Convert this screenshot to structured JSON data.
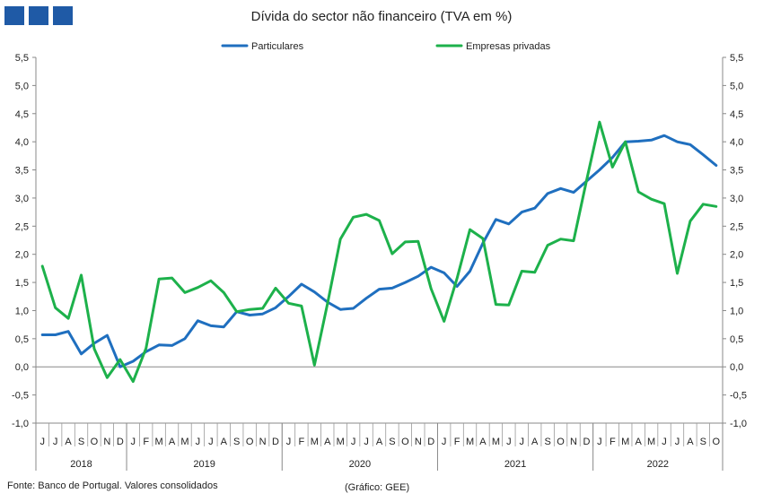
{
  "logo_color": "#1f5aa6",
  "title": "Dívida do sector não financeiro (TVA em %)",
  "source_left": "Fonte: Banco de Portugal. Valores consolidados",
  "source_right": "(Gráfico: GEE)",
  "chart_data": {
    "type": "line",
    "title": "Dívida do sector não financeiro (TVA em %)",
    "ylim": [
      -1.0,
      5.5
    ],
    "y_ticks": [
      "5,5",
      "5,0",
      "4,5",
      "4,0",
      "3,5",
      "3,0",
      "2,5",
      "2,0",
      "1,5",
      "1,0",
      "0,5",
      "0,0",
      "-0,5",
      "-1,0"
    ],
    "grid": false,
    "legend_position": "top-center",
    "month_labels": [
      "J",
      "J",
      "A",
      "S",
      "O",
      "N",
      "D",
      "J",
      "F",
      "M",
      "A",
      "M",
      "J",
      "J",
      "A",
      "S",
      "O",
      "N",
      "D",
      "J",
      "F",
      "M",
      "A",
      "M",
      "J",
      "J",
      "A",
      "S",
      "O",
      "N",
      "D",
      "J",
      "F",
      "M",
      "A",
      "M",
      "J",
      "J",
      "A",
      "S",
      "O",
      "N",
      "D",
      "J",
      "F",
      "M",
      "A",
      "M",
      "J",
      "J",
      "A",
      "S",
      "O"
    ],
    "years": [
      {
        "label": "2018",
        "start": 0,
        "count": 7
      },
      {
        "label": "2019",
        "start": 7,
        "count": 12
      },
      {
        "label": "2020",
        "start": 19,
        "count": 12
      },
      {
        "label": "2021",
        "start": 31,
        "count": 12
      },
      {
        "label": "2022",
        "start": 43,
        "count": 10
      }
    ],
    "series": [
      {
        "name": "Particulares",
        "color": "#1f6fbf",
        "values": [
          0.57,
          0.57,
          0.63,
          0.23,
          0.42,
          0.56,
          0.0,
          0.1,
          0.27,
          0.39,
          0.38,
          0.5,
          0.82,
          0.73,
          0.71,
          0.98,
          0.92,
          0.94,
          1.05,
          1.25,
          1.47,
          1.33,
          1.15,
          1.02,
          1.04,
          1.22,
          1.38,
          1.4,
          1.5,
          1.61,
          1.77,
          1.67,
          1.43,
          1.7,
          2.2,
          2.62,
          2.54,
          2.75,
          2.82,
          3.08,
          3.17,
          3.1,
          3.3,
          3.5,
          3.72,
          4.0,
          4.01,
          4.03,
          4.11,
          4.0,
          3.95,
          3.77,
          3.58
        ]
      },
      {
        "name": "Empresas privadas",
        "color": "#1db14b",
        "values": [
          1.79,
          1.05,
          0.86,
          1.63,
          0.32,
          -0.19,
          0.13,
          -0.26,
          0.33,
          1.56,
          1.58,
          1.32,
          1.41,
          1.53,
          1.32,
          0.98,
          1.02,
          1.04,
          1.4,
          1.13,
          1.08,
          0.03,
          1.12,
          2.27,
          2.66,
          2.71,
          2.6,
          2.01,
          2.22,
          2.23,
          1.39,
          0.81,
          1.57,
          2.44,
          2.28,
          1.11,
          1.1,
          1.7,
          1.68,
          2.16,
          2.27,
          2.24,
          3.31,
          4.35,
          3.55,
          4.0,
          3.11,
          2.98,
          2.9,
          1.66,
          2.59,
          2.89,
          2.85
        ]
      }
    ]
  }
}
